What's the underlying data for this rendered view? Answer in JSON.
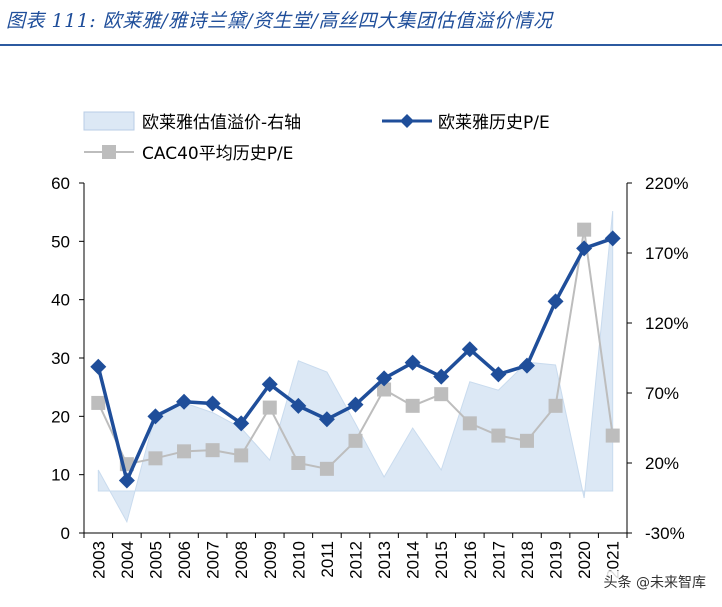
{
  "title": "图表 111: 欧莱雅/雅诗兰黛/资生堂/高丝四大集团估值溢价情况",
  "watermark": "头条 @未来智库",
  "chart_data": {
    "type": "line",
    "categories": [
      "2003",
      "2004",
      "2005",
      "2006",
      "2007",
      "2008",
      "2009",
      "2010",
      "2011",
      "2012",
      "2013",
      "2014",
      "2015",
      "2016",
      "2017",
      "2018",
      "2019",
      "2020",
      "2021"
    ],
    "left_axis": {
      "ylim": [
        0,
        60
      ],
      "ticks": [
        "0",
        "10",
        "20",
        "30",
        "40",
        "50",
        "60"
      ]
    },
    "right_axis": {
      "ylim": [
        -30,
        220
      ],
      "ticks": [
        "-30%",
        "20%",
        "70%",
        "120%",
        "170%",
        "220%"
      ]
    },
    "series": [
      {
        "name": "欧莱雅估值溢价-右轴",
        "kind": "area",
        "axis": "right",
        "color": "#dce8f5",
        "values": [
          15,
          -22,
          55,
          63,
          56,
          45,
          22,
          93,
          85,
          48,
          10,
          45,
          15,
          78,
          72,
          92,
          90,
          -5,
          200
        ]
      },
      {
        "name": "欧莱雅历史P/E",
        "kind": "line",
        "axis": "left",
        "color": "#1f4e9a",
        "values": [
          28.5,
          9.0,
          20.0,
          22.5,
          22.2,
          18.8,
          25.5,
          21.8,
          19.5,
          22.0,
          26.5,
          29.2,
          26.8,
          31.5,
          27.2,
          28.7,
          39.7,
          48.8,
          50.5
        ]
      },
      {
        "name": "CAC40平均历史P/E",
        "kind": "line",
        "axis": "left",
        "color": "#bdbdbd",
        "values": [
          22.3,
          11.8,
          12.8,
          14.0,
          14.2,
          13.3,
          21.5,
          12.0,
          11.0,
          15.8,
          24.6,
          21.8,
          23.8,
          18.8,
          16.7,
          15.8,
          21.8,
          52.0,
          16.7
        ]
      }
    ]
  }
}
